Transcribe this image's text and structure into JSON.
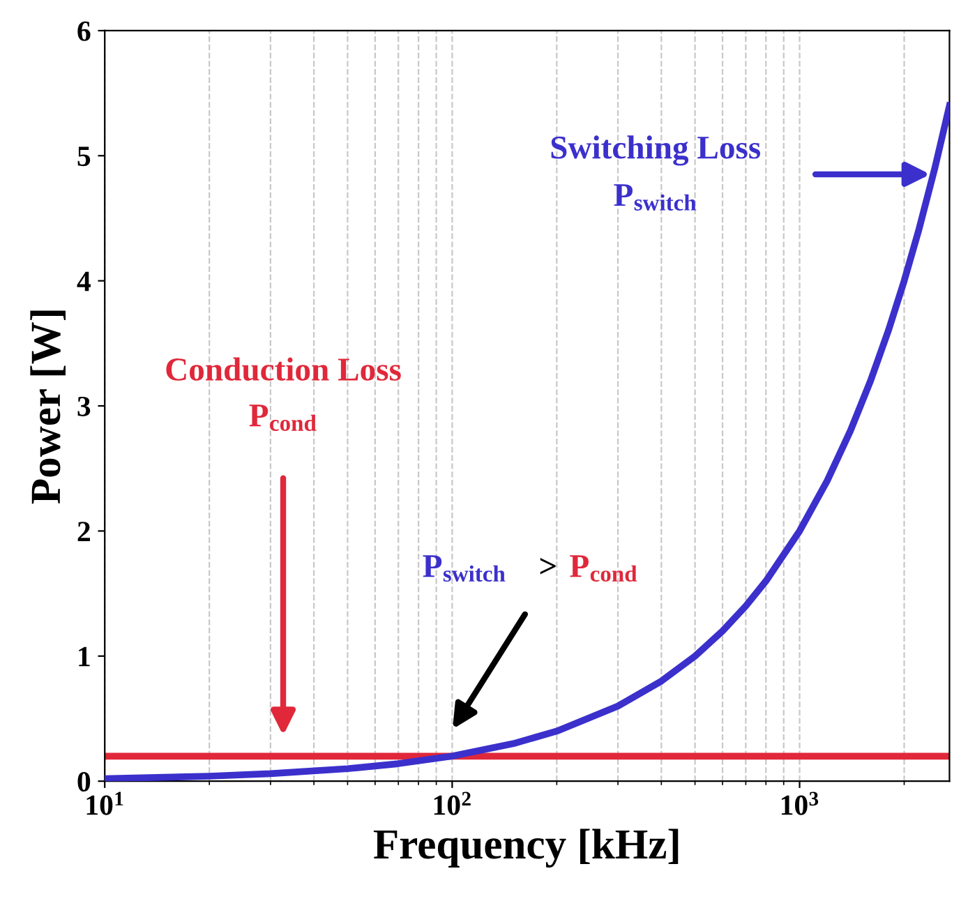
{
  "chart_data": {
    "type": "line",
    "xlabel": "Frequency [kHz]",
    "ylabel": "Power [W]",
    "log": "x",
    "x": [
      10,
      20,
      30,
      50,
      70,
      100,
      150,
      200,
      300,
      400,
      500,
      600,
      700,
      800,
      1000,
      1200,
      1400,
      1600,
      1800,
      2000,
      2200,
      2450,
      2700
    ],
    "series": [
      {
        "color": "#3b30cc",
        "values": [
          0.02,
          0.04,
          0.06,
          0.1,
          0.14,
          0.2,
          0.3,
          0.4,
          0.6,
          0.8,
          1.0,
          1.2,
          1.4,
          1.6,
          2.0,
          2.4,
          2.8,
          3.2,
          3.6,
          4.0,
          4.4,
          4.9,
          5.4
        ]
      }
    ],
    "ref_lines": [
      {
        "axis": "y",
        "value": 0.2,
        "color": "#e0283a"
      }
    ],
    "xlim": [
      10,
      2700
    ],
    "ylim": [
      0,
      6
    ],
    "xticks": [
      {
        "value": 10,
        "label": "10$^{1}$"
      },
      {
        "value": 100,
        "label": "10$^{2}$"
      },
      {
        "value": 1000,
        "label": "10$^{3}$"
      }
    ],
    "yticks": [
      0,
      1,
      2,
      3,
      4,
      5,
      6
    ],
    "grid": "x",
    "marker": "none",
    "line_style": "solid",
    "legend": false,
    "annotations": [
      "Switching Loss",
      "P$_{switch}$",
      "Conduction Loss",
      "P$_{cond}$",
      "P$_{switch}$",
      ">",
      "P$_{cond}$"
    ]
  }
}
